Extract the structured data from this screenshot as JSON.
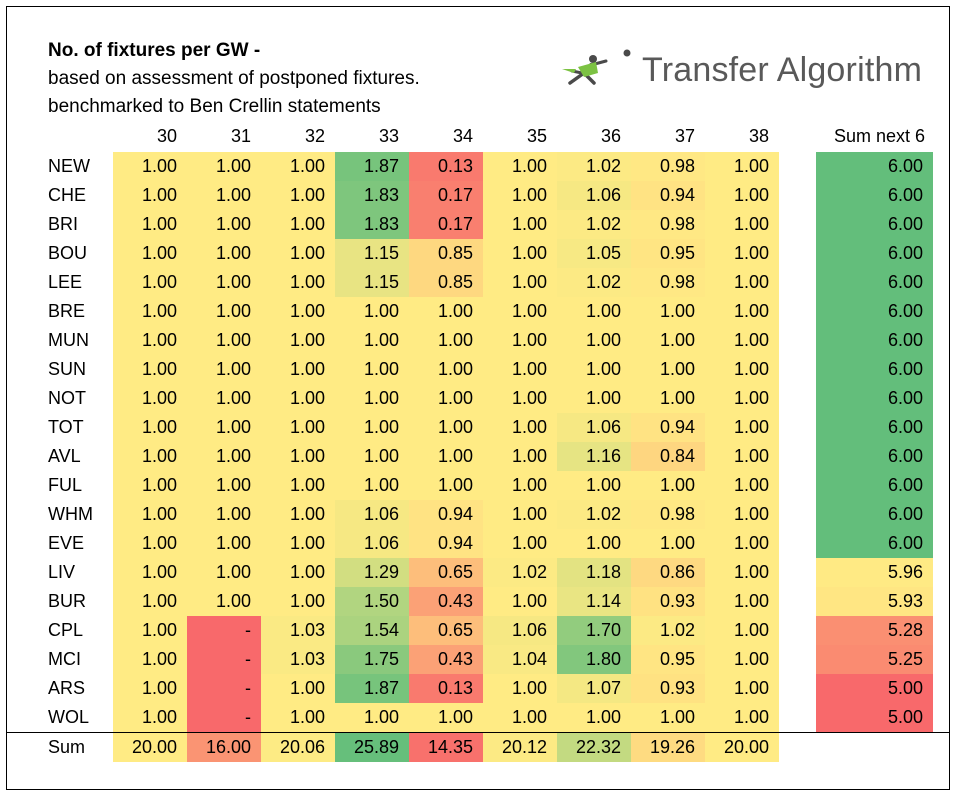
{
  "header": {
    "title": "No. of fixtures per GW -",
    "subtitle_1": "based on assessment of postponed fixtures.",
    "subtitle_2": "benchmarked to Ben Crellin statements",
    "logo_text": "Transfer Algorithm"
  },
  "chart_data": {
    "type": "table",
    "gameweeks": [
      "30",
      "31",
      "32",
      "33",
      "34",
      "35",
      "36",
      "37",
      "38"
    ],
    "sum_column_label": "Sum next 6",
    "sum_row_label": "Sum",
    "rows": [
      {
        "team": "NEW",
        "values": [
          "1.00",
          "1.00",
          "1.00",
          "1.87",
          "0.13",
          "1.00",
          "1.02",
          "0.98",
          "1.00"
        ],
        "sum_next_6": "6.00"
      },
      {
        "team": "CHE",
        "values": [
          "1.00",
          "1.00",
          "1.00",
          "1.83",
          "0.17",
          "1.00",
          "1.06",
          "0.94",
          "1.00"
        ],
        "sum_next_6": "6.00"
      },
      {
        "team": "BRI",
        "values": [
          "1.00",
          "1.00",
          "1.00",
          "1.83",
          "0.17",
          "1.00",
          "1.02",
          "0.98",
          "1.00"
        ],
        "sum_next_6": "6.00"
      },
      {
        "team": "BOU",
        "values": [
          "1.00",
          "1.00",
          "1.00",
          "1.15",
          "0.85",
          "1.00",
          "1.05",
          "0.95",
          "1.00"
        ],
        "sum_next_6": "6.00"
      },
      {
        "team": "LEE",
        "values": [
          "1.00",
          "1.00",
          "1.00",
          "1.15",
          "0.85",
          "1.00",
          "1.02",
          "0.98",
          "1.00"
        ],
        "sum_next_6": "6.00"
      },
      {
        "team": "BRE",
        "values": [
          "1.00",
          "1.00",
          "1.00",
          "1.00",
          "1.00",
          "1.00",
          "1.00",
          "1.00",
          "1.00"
        ],
        "sum_next_6": "6.00"
      },
      {
        "team": "MUN",
        "values": [
          "1.00",
          "1.00",
          "1.00",
          "1.00",
          "1.00",
          "1.00",
          "1.00",
          "1.00",
          "1.00"
        ],
        "sum_next_6": "6.00"
      },
      {
        "team": "SUN",
        "values": [
          "1.00",
          "1.00",
          "1.00",
          "1.00",
          "1.00",
          "1.00",
          "1.00",
          "1.00",
          "1.00"
        ],
        "sum_next_6": "6.00"
      },
      {
        "team": "NOT",
        "values": [
          "1.00",
          "1.00",
          "1.00",
          "1.00",
          "1.00",
          "1.00",
          "1.00",
          "1.00",
          "1.00"
        ],
        "sum_next_6": "6.00"
      },
      {
        "team": "TOT",
        "values": [
          "1.00",
          "1.00",
          "1.00",
          "1.00",
          "1.00",
          "1.00",
          "1.06",
          "0.94",
          "1.00"
        ],
        "sum_next_6": "6.00"
      },
      {
        "team": "AVL",
        "values": [
          "1.00",
          "1.00",
          "1.00",
          "1.00",
          "1.00",
          "1.00",
          "1.16",
          "0.84",
          "1.00"
        ],
        "sum_next_6": "6.00"
      },
      {
        "team": "FUL",
        "values": [
          "1.00",
          "1.00",
          "1.00",
          "1.00",
          "1.00",
          "1.00",
          "1.00",
          "1.00",
          "1.00"
        ],
        "sum_next_6": "6.00"
      },
      {
        "team": "WHM",
        "values": [
          "1.00",
          "1.00",
          "1.00",
          "1.06",
          "0.94",
          "1.00",
          "1.02",
          "0.98",
          "1.00"
        ],
        "sum_next_6": "6.00"
      },
      {
        "team": "EVE",
        "values": [
          "1.00",
          "1.00",
          "1.00",
          "1.06",
          "0.94",
          "1.00",
          "1.00",
          "1.00",
          "1.00"
        ],
        "sum_next_6": "6.00"
      },
      {
        "team": "LIV",
        "values": [
          "1.00",
          "1.00",
          "1.00",
          "1.29",
          "0.65",
          "1.02",
          "1.18",
          "0.86",
          "1.00"
        ],
        "sum_next_6": "5.96"
      },
      {
        "team": "BUR",
        "values": [
          "1.00",
          "1.00",
          "1.00",
          "1.50",
          "0.43",
          "1.00",
          "1.14",
          "0.93",
          "1.00"
        ],
        "sum_next_6": "5.93"
      },
      {
        "team": "CPL",
        "values": [
          "1.00",
          "-",
          "1.03",
          "1.54",
          "0.65",
          "1.06",
          "1.70",
          "1.02",
          "1.00"
        ],
        "sum_next_6": "5.28"
      },
      {
        "team": "MCI",
        "values": [
          "1.00",
          "-",
          "1.03",
          "1.75",
          "0.43",
          "1.04",
          "1.80",
          "0.95",
          "1.00"
        ],
        "sum_next_6": "5.25"
      },
      {
        "team": "ARS",
        "values": [
          "1.00",
          "-",
          "1.00",
          "1.87",
          "0.13",
          "1.00",
          "1.07",
          "0.93",
          "1.00"
        ],
        "sum_next_6": "5.00"
      },
      {
        "team": "WOL",
        "values": [
          "1.00",
          "-",
          "1.00",
          "1.00",
          "1.00",
          "1.00",
          "1.00",
          "1.00",
          "1.00"
        ],
        "sum_next_6": "5.00"
      }
    ],
    "sum_row": [
      "20.00",
      "16.00",
      "20.06",
      "25.89",
      "14.35",
      "20.12",
      "22.32",
      "19.26",
      "20.00"
    ],
    "colors": {
      "low": "#f8696b",
      "mid": "#ffeb84",
      "high": "#63be7b"
    }
  }
}
